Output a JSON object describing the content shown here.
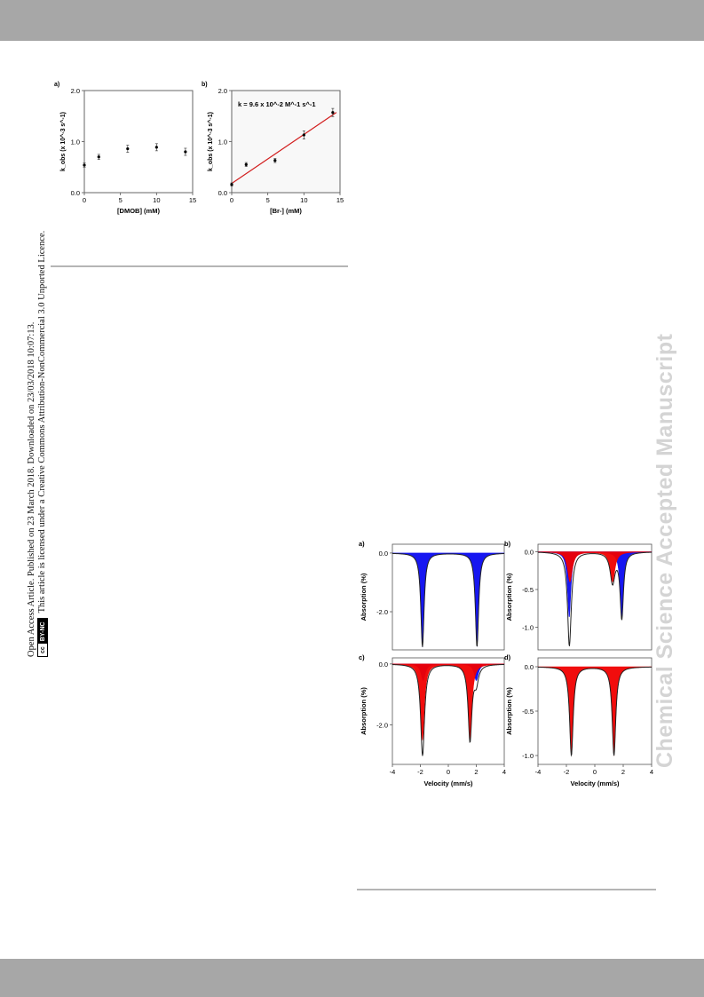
{
  "license": {
    "line1": "Open Access Article. Published on 23 March 2018. Downloaded on 23/03/2018 10:07:13.",
    "line2": "This article is licensed under a Creative Commons Attribution-NonCommercial 3.0 Unported Licence.",
    "badge_cc": "cc",
    "badge_by": "BY-NC"
  },
  "watermark": "Chemical Science Accepted Manuscript",
  "chart_data": [
    {
      "panel": "a)",
      "type": "scatter",
      "xlabel": "[DMOB] (mM)",
      "ylabel": "k_obs (x 10^-3 s^-1)",
      "xlim": [
        0,
        15
      ],
      "ylim": [
        0,
        2.0
      ],
      "xticks": [
        "0",
        "5",
        "10",
        "15"
      ],
      "yticks": [
        "0.0",
        "1.0",
        "2.0"
      ],
      "x": [
        0,
        2,
        6,
        10,
        14
      ],
      "y": [
        0.54,
        0.7,
        0.86,
        0.89,
        0.8
      ],
      "yerr": [
        0.04,
        0.05,
        0.07,
        0.07,
        0.07
      ]
    },
    {
      "panel": "b)",
      "type": "scatter",
      "xlabel": "[Br-] (mM)",
      "ylabel": "k_obs (x 10^-3 s^-1)",
      "annotation": "k = 9.6 x 10^-2 M^-1 s^-1",
      "xlim": [
        0,
        15
      ],
      "ylim": [
        0,
        2.0
      ],
      "xticks": [
        "0",
        "5",
        "10",
        "15"
      ],
      "yticks": [
        "0.0",
        "1.0",
        "2.0"
      ],
      "x": [
        0,
        2,
        6,
        10,
        14
      ],
      "y": [
        0.16,
        0.55,
        0.63,
        1.13,
        1.57
      ],
      "yerr": [
        0.03,
        0.04,
        0.04,
        0.08,
        0.08
      ],
      "fit": {
        "slope": 0.096,
        "intercept": 0.18
      },
      "fit_color": "#d21e1e"
    },
    {
      "panel": "a)",
      "type": "area",
      "xlabel": "",
      "ylabel": "Absorption (%)",
      "xlim": [
        -4,
        4
      ],
      "ylim": [
        -3.3,
        0.3
      ],
      "yticks": [
        "0.0",
        "-2.0"
      ],
      "series": [
        {
          "color": "#0b0bf0",
          "doublets": [
            {
              "center": 0.1,
              "split": 3.9,
              "depth": 3.2,
              "width": 0.14
            }
          ]
        }
      ]
    },
    {
      "panel": "b)",
      "type": "area",
      "xlabel": "",
      "ylabel": "Absorption (%)",
      "xlim": [
        -4,
        4
      ],
      "ylim": [
        -1.3,
        0.1
      ],
      "yticks": [
        "0.0",
        "-0.5",
        "-1.0"
      ],
      "series": [
        {
          "color": "#0b0bf0",
          "doublets": [
            {
              "center": 0.05,
              "split": 3.7,
              "depth": 0.87,
              "width": 0.14
            }
          ]
        },
        {
          "color": "#f00000",
          "doublets": [
            {
              "center": -0.25,
              "split": 3.0,
              "depth": 0.4,
              "width": 0.2
            }
          ]
        }
      ]
    },
    {
      "panel": "c)",
      "type": "area",
      "xlabel": "Velocity (mm/s)",
      "ylabel": "Absorption (%)",
      "xlim": [
        -4,
        4
      ],
      "ylim": [
        -3.3,
        0.2
      ],
      "xticks": [
        "-4",
        "-2",
        "0",
        "2",
        "4"
      ],
      "yticks": [
        "0.0",
        "-2.0"
      ],
      "series": [
        {
          "color": "#0b0bf0",
          "doublets": [
            {
              "center": 0.1,
              "split": 3.8,
              "depth": 0.55,
              "width": 0.18
            }
          ]
        },
        {
          "color": "#f00000",
          "doublets": [
            {
              "center": -0.15,
              "split": 3.4,
              "depth": 2.5,
              "width": 0.16
            }
          ]
        }
      ]
    },
    {
      "panel": "d)",
      "type": "area",
      "xlabel": "Velocity (mm/s)",
      "ylabel": "Absorption (%)",
      "xlim": [
        -4,
        4
      ],
      "ylim": [
        -1.1,
        0.1
      ],
      "xticks": [
        "-4",
        "-2",
        "0",
        "2",
        "4"
      ],
      "yticks": [
        "0.0",
        "-0.5",
        "-1.0"
      ],
      "series": [
        {
          "color": "#f00000",
          "doublets": [
            {
              "center": -0.15,
              "split": 3.0,
              "depth": 1.0,
              "width": 0.15
            }
          ]
        }
      ]
    }
  ]
}
